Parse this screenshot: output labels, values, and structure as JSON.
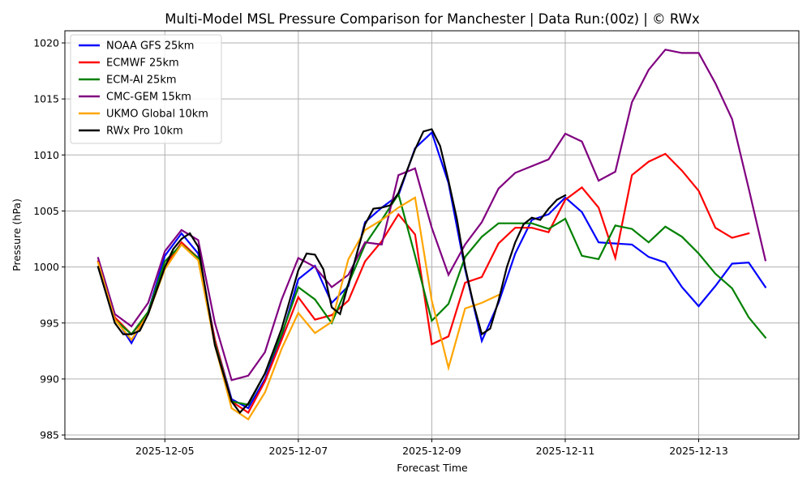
{
  "chart_data": {
    "type": "line",
    "title": "Multi-Model MSL Pressure Comparison for Manchester | Data Run:(00z) | © RWx",
    "xlabel": "Forecast Time",
    "ylabel": "Pressure (hPa)",
    "x_start": "2025-12-04T00:00",
    "x_unit": "hours since start",
    "xlim_hours": [
      -10,
      254
    ],
    "ylim": [
      984.8,
      1021.1
    ],
    "grid": true,
    "legend_position": "top-left",
    "x_ticks": [
      {
        "label": "2025-12-05",
        "hours": 24
      },
      {
        "label": "2025-12-07",
        "hours": 72
      },
      {
        "label": "2025-12-09",
        "hours": 120
      },
      {
        "label": "2025-12-11",
        "hours": 168
      },
      {
        "label": "2025-12-13",
        "hours": 216
      }
    ],
    "y_ticks": [
      985,
      990,
      995,
      1000,
      1005,
      1010,
      1015,
      1020
    ],
    "series": [
      {
        "name": "NOAA GFS 25km",
        "color": "#0000ff",
        "step_hours": 6,
        "values": [
          1000.0,
          995.5,
          993.2,
          996.0,
          1001.0,
          1003.0,
          1001.2,
          993.5,
          988.2,
          987.4,
          990.0,
          993.8,
          998.9,
          1000.1,
          996.8,
          998.3,
          1004.0,
          1005.3,
          1006.4,
          1010.6,
          1012.0,
          1007.5,
          999.8,
          993.4,
          996.8,
          1001.2,
          1004.2,
          1004.7,
          1006.2,
          1004.9,
          1002.2,
          1002.1,
          1002.0,
          1000.9,
          1000.4,
          998.2,
          996.5,
          998.3,
          1000.3,
          1000.4,
          998.2
        ]
      },
      {
        "name": "ECMWF 25km",
        "color": "#ff0000",
        "step_hours": 6,
        "values": [
          1000.5,
          995.5,
          994.0,
          995.8,
          1000.0,
          1002.2,
          1000.8,
          993.5,
          988.0,
          987.0,
          989.8,
          993.5,
          997.3,
          995.3,
          995.7,
          997.0,
          1000.5,
          1002.3,
          1004.7,
          1002.9,
          993.1,
          993.8,
          998.6,
          999.1,
          1002.1,
          1003.5,
          1003.5,
          1003.1,
          1006.0,
          1007.1,
          1005.3,
          1000.8,
          1008.2,
          1009.4,
          1010.1,
          1008.6,
          1006.8,
          1003.5,
          1002.6,
          1003.0
        ]
      },
      {
        "name": "ECM-AI 25km",
        "color": "#008000",
        "step_hours": 6,
        "values": [
          1000.0,
          995.3,
          994.0,
          996.0,
          1000.5,
          1002.0,
          1000.8,
          993.2,
          988.0,
          987.7,
          990.5,
          994.0,
          998.2,
          997.1,
          995.0,
          998.5,
          1002.0,
          1004.2,
          1006.5,
          1001.0,
          995.2,
          996.7,
          1000.9,
          1002.7,
          1003.9,
          1003.9,
          1003.9,
          1003.4,
          1004.3,
          1001.0,
          1000.7,
          1003.7,
          1003.4,
          1002.2,
          1003.6,
          1002.7,
          1001.2,
          999.4,
          998.1,
          995.5,
          993.7
        ]
      },
      {
        "name": "CMC-GEM 15km",
        "color": "#800080",
        "step_hours": 6,
        "values": [
          1000.8,
          995.8,
          994.7,
          996.8,
          1001.4,
          1003.3,
          1002.4,
          995.0,
          989.9,
          990.3,
          992.4,
          997.1,
          1000.8,
          1000.0,
          998.2,
          999.3,
          1002.2,
          1002.0,
          1008.2,
          1008.8,
          1003.5,
          999.3,
          1002.0,
          1004.0,
          1007.0,
          1008.4,
          1009.0,
          1009.6,
          1011.9,
          1011.2,
          1007.7,
          1008.5,
          1014.7,
          1017.6,
          1019.4,
          1019.1,
          1019.1,
          1016.4,
          1013.2,
          1007.0,
          1000.6
        ]
      },
      {
        "name": "UKMO Global 10km",
        "color": "#ffa500",
        "step_hours": 6,
        "values": [
          1000.4,
          995.3,
          993.5,
          995.8,
          999.8,
          1002.0,
          1000.6,
          993.0,
          987.4,
          986.4,
          988.8,
          992.7,
          995.9,
          994.1,
          995.1,
          1000.7,
          1003.3,
          1004.2,
          1005.3,
          1006.2,
          997.0,
          991.0,
          996.3,
          996.8,
          997.5
        ]
      },
      {
        "name": "RWx Pro 10km",
        "color": "#000000",
        "hours": [
          0,
          6,
          9,
          12,
          15,
          18,
          24,
          27,
          30,
          33,
          36,
          42,
          48,
          51,
          54,
          60,
          66,
          72,
          75,
          78,
          81,
          84,
          87,
          90,
          96,
          99,
          102,
          105,
          108,
          114,
          117,
          120,
          123,
          126,
          129,
          132,
          135,
          138,
          141,
          144,
          147,
          150,
          153,
          156,
          159,
          162,
          165,
          168
        ],
        "values": [
          1000.0,
          995.0,
          994.0,
          994.0,
          994.3,
          995.8,
          1000.0,
          1001.6,
          1002.5,
          1003.0,
          1001.8,
          993.0,
          988.0,
          987.0,
          987.8,
          990.5,
          994.5,
          999.7,
          1001.2,
          1001.1,
          999.8,
          996.4,
          995.8,
          998.5,
          1003.8,
          1005.2,
          1005.3,
          1005.5,
          1006.6,
          1010.5,
          1012.1,
          1012.3,
          1010.8,
          1007.7,
          1004.3,
          1000.0,
          996.7,
          994.0,
          994.5,
          997.0,
          1000.0,
          1002.2,
          1003.8,
          1004.4,
          1004.2,
          1005.2,
          1006.0,
          1006.4
        ]
      }
    ]
  }
}
